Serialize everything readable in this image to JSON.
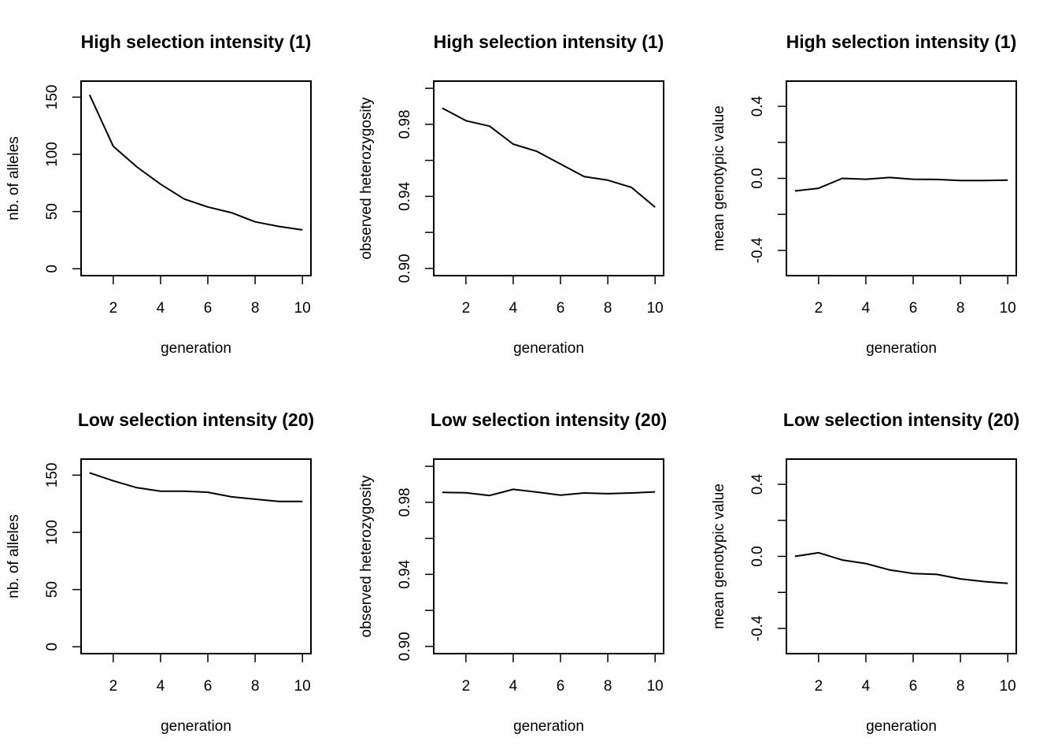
{
  "chart_data": [
    {
      "type": "line",
      "title": "High selection intensity (1)",
      "xlabel": "generation",
      "ylabel": "nb. of alleles",
      "x": [
        1,
        2,
        3,
        4,
        5,
        6,
        7,
        8,
        9,
        10
      ],
      "series": [
        {
          "values": [
            152,
            107,
            89,
            74,
            61,
            54,
            49,
            41,
            37,
            34
          ]
        }
      ],
      "xticks": [
        2,
        4,
        6,
        8,
        10
      ],
      "xtick_labels": [
        "2",
        "4",
        "6",
        "8",
        "10"
      ],
      "yticks": [
        0,
        50,
        100,
        150
      ],
      "ytick_labels": [
        "0",
        "50",
        "100",
        "150"
      ],
      "xlim": [
        0.64,
        10.36
      ],
      "ylim": [
        -6,
        164
      ],
      "grid": false
    },
    {
      "type": "line",
      "title": "High selection intensity (1)",
      "xlabel": "generation",
      "ylabel": "observed heterozygosity",
      "x": [
        1,
        2,
        3,
        4,
        5,
        6,
        7,
        8,
        9,
        10
      ],
      "series": [
        {
          "values": [
            0.989,
            0.982,
            0.979,
            0.969,
            0.965,
            0.958,
            0.951,
            0.949,
            0.945,
            0.934
          ]
        }
      ],
      "xticks": [
        2,
        4,
        6,
        8,
        10
      ],
      "xtick_labels": [
        "2",
        "4",
        "6",
        "8",
        "10"
      ],
      "yticks": [
        0.9,
        0.92,
        0.94,
        0.96,
        0.98,
        1.0
      ],
      "ytick_labels": [
        "0.90",
        "",
        "0.94",
        "",
        "0.98",
        ""
      ],
      "xlim": [
        0.64,
        10.36
      ],
      "ylim": [
        0.896,
        1.004
      ],
      "grid": false
    },
    {
      "type": "line",
      "title": "High selection intensity (1)",
      "xlabel": "generation",
      "ylabel": "mean genotypic value",
      "x": [
        1,
        2,
        3,
        4,
        5,
        6,
        7,
        8,
        9,
        10
      ],
      "series": [
        {
          "values": [
            -0.07,
            -0.055,
            0.0,
            -0.005,
            0.005,
            -0.005,
            -0.006,
            -0.012,
            -0.012,
            -0.01
          ]
        }
      ],
      "xticks": [
        2,
        4,
        6,
        8,
        10
      ],
      "xtick_labels": [
        "2",
        "4",
        "6",
        "8",
        "10"
      ],
      "yticks": [
        -0.4,
        -0.2,
        0.0,
        0.2,
        0.4
      ],
      "ytick_labels": [
        "-0.4",
        "",
        "0.0",
        "",
        "0.4"
      ],
      "xlim": [
        0.64,
        10.36
      ],
      "ylim": [
        -0.54,
        0.54
      ],
      "grid": false
    },
    {
      "type": "line",
      "title": "Low selection intensity (20)",
      "xlabel": "generation",
      "ylabel": "nb. of alleles",
      "x": [
        1,
        2,
        3,
        4,
        5,
        6,
        7,
        8,
        9,
        10
      ],
      "series": [
        {
          "values": [
            152,
            145,
            139,
            136,
            136,
            135,
            131,
            129,
            127,
            127
          ]
        }
      ],
      "xticks": [
        2,
        4,
        6,
        8,
        10
      ],
      "xtick_labels": [
        "2",
        "4",
        "6",
        "8",
        "10"
      ],
      "yticks": [
        0,
        50,
        100,
        150
      ],
      "ytick_labels": [
        "0",
        "50",
        "100",
        "150"
      ],
      "xlim": [
        0.64,
        10.36
      ],
      "ylim": [
        -6,
        164
      ],
      "grid": false
    },
    {
      "type": "line",
      "title": "Low selection intensity (20)",
      "xlabel": "generation",
      "ylabel": "observed heterozygosity",
      "x": [
        1,
        2,
        3,
        4,
        5,
        6,
        7,
        8,
        9,
        10
      ],
      "series": [
        {
          "values": [
            0.9855,
            0.9853,
            0.9838,
            0.9872,
            0.9857,
            0.984,
            0.9852,
            0.9848,
            0.9852,
            0.9858
          ]
        }
      ],
      "xticks": [
        2,
        4,
        6,
        8,
        10
      ],
      "xtick_labels": [
        "2",
        "4",
        "6",
        "8",
        "10"
      ],
      "yticks": [
        0.9,
        0.92,
        0.94,
        0.96,
        0.98,
        1.0
      ],
      "ytick_labels": [
        "0.90",
        "",
        "0.94",
        "",
        "0.98",
        ""
      ],
      "xlim": [
        0.64,
        10.36
      ],
      "ylim": [
        0.896,
        1.004
      ],
      "grid": false
    },
    {
      "type": "line",
      "title": "Low selection intensity (20)",
      "xlabel": "generation",
      "ylabel": "mean genotypic value",
      "x": [
        1,
        2,
        3,
        4,
        5,
        6,
        7,
        8,
        9,
        10
      ],
      "series": [
        {
          "values": [
            0.0,
            0.02,
            -0.02,
            -0.04,
            -0.075,
            -0.095,
            -0.1,
            -0.125,
            -0.14,
            -0.15
          ]
        }
      ],
      "xticks": [
        2,
        4,
        6,
        8,
        10
      ],
      "xtick_labels": [
        "2",
        "4",
        "6",
        "8",
        "10"
      ],
      "yticks": [
        -0.4,
        -0.2,
        0.0,
        0.2,
        0.4
      ],
      "ytick_labels": [
        "-0.4",
        "",
        "0.0",
        "",
        "0.4"
      ],
      "xlim": [
        0.64,
        10.36
      ],
      "ylim": [
        -0.54,
        0.54
      ],
      "grid": false
    }
  ]
}
